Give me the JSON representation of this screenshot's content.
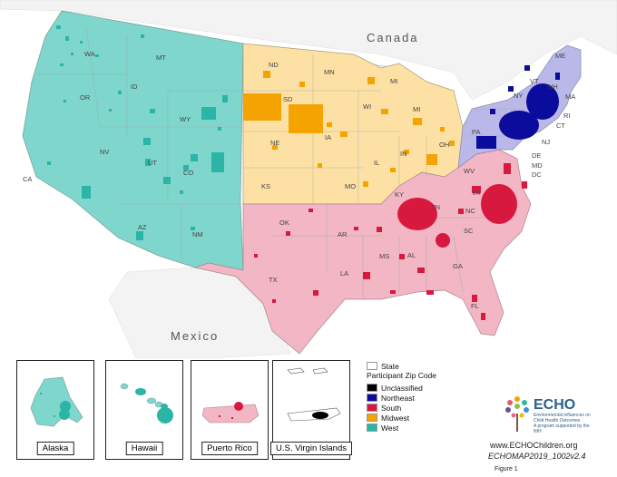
{
  "countries": {
    "canada": "Canada",
    "mexico": "Mexico"
  },
  "states": [
    "WA",
    "MT",
    "OR",
    "ID",
    "WY",
    "NV",
    "UT",
    "CO",
    "CA",
    "AZ",
    "NM",
    "ND",
    "MN",
    "SD",
    "WI",
    "MI",
    "NE",
    "IA",
    "IL",
    "IN",
    "OH",
    "KS",
    "MO",
    "KY",
    "WV",
    "VA",
    "OK",
    "AR",
    "TN",
    "NC",
    "SC",
    "TX",
    "LA",
    "MS",
    "AL",
    "GA",
    "FL",
    "PA",
    "NY",
    "VT",
    "NH",
    "ME",
    "MA",
    "CT",
    "RI",
    "NJ",
    "DE",
    "MD",
    "DC"
  ],
  "regions": {
    "west": "#7fd6cc",
    "midwest": "#fde1a4",
    "south": "#f2b6c4",
    "northeast": "#b9b8e8"
  },
  "legend": {
    "state_label": "State",
    "title": "Participant Zip Code",
    "items": [
      {
        "label": "Unclassified",
        "color": "#000000"
      },
      {
        "label": "Northeast",
        "color": "#0b0b9c"
      },
      {
        "label": "South",
        "color": "#d8193f"
      },
      {
        "label": "Midwest",
        "color": "#f5a300"
      },
      {
        "label": "West",
        "color": "#2ab5a6"
      }
    ]
  },
  "insets": {
    "alaska": "Alaska",
    "hawaii": "Hawaii",
    "puerto_rico": "Puerto Rico",
    "virgin_islands": "U.S. Virgin Islands"
  },
  "logo": {
    "name": "ECHO",
    "tagline": "Environmental influences on Child Health Outcomes",
    "note": "A program supported by the NIH"
  },
  "url": "www.ECHOChildren.org",
  "map_id": "ECHOMAP2019_1002v2.4",
  "figure": "Figure 1"
}
